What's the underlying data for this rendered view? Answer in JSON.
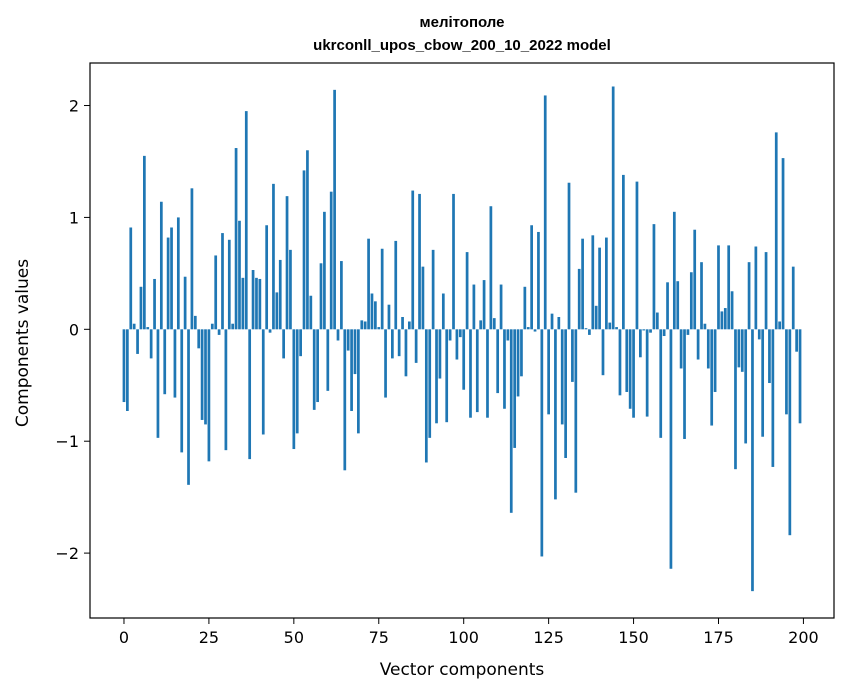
{
  "chart_data": {
    "type": "bar",
    "title": "мелітополе",
    "subtitle": "ukrconll_upos_cbow_200_10_2022 model",
    "xlabel": "Vector components",
    "ylabel": "Components values",
    "xlim": [
      -10,
      209
    ],
    "ylim": [
      -2.58,
      2.38
    ],
    "xticks": [
      0,
      25,
      50,
      75,
      100,
      125,
      150,
      175,
      200
    ],
    "xtick_labels": [
      "0",
      "25",
      "50",
      "75",
      "100",
      "125",
      "150",
      "175",
      "200"
    ],
    "yticks": [
      -2,
      -1,
      0,
      1,
      2
    ],
    "ytick_labels": [
      "−2",
      "−1",
      "0",
      "1",
      "2"
    ],
    "bar_color": "#1f77b4",
    "grid": false,
    "values": [
      -0.65,
      -0.73,
      0.91,
      0.05,
      -0.22,
      0.38,
      1.55,
      0.02,
      -0.26,
      0.45,
      -0.97,
      1.14,
      -0.58,
      0.82,
      0.91,
      -0.61,
      1.0,
      -1.1,
      0.47,
      -1.39,
      1.26,
      0.12,
      -0.17,
      -0.81,
      -0.85,
      -1.18,
      0.05,
      0.66,
      -0.05,
      0.86,
      -1.08,
      0.8,
      0.05,
      1.62,
      0.97,
      0.46,
      1.95,
      -1.16,
      0.53,
      0.46,
      0.45,
      -0.94,
      0.93,
      -0.03,
      1.3,
      0.33,
      0.62,
      -0.26,
      1.19,
      0.71,
      -1.07,
      -0.93,
      -0.24,
      1.42,
      1.6,
      0.3,
      -0.72,
      -0.65,
      0.59,
      1.05,
      -0.55,
      1.23,
      2.14,
      -0.1,
      0.61,
      -1.26,
      -0.19,
      -0.73,
      -0.4,
      -0.93,
      0.08,
      0.07,
      0.81,
      0.32,
      0.25,
      0.02,
      0.72,
      -0.61,
      0.22,
      -0.26,
      0.79,
      -0.24,
      0.11,
      -0.42,
      0.07,
      1.24,
      -0.3,
      1.21,
      0.56,
      -1.19,
      -0.97,
      0.71,
      -0.84,
      -0.44,
      0.32,
      -0.83,
      -0.1,
      1.21,
      -0.27,
      -0.07,
      -0.54,
      0.69,
      -0.79,
      0.4,
      -0.74,
      0.08,
      0.44,
      -0.79,
      1.1,
      0.1,
      -0.57,
      0.4,
      -0.71,
      -0.1,
      -1.64,
      -1.06,
      -0.6,
      -0.42,
      0.38,
      0.02,
      0.93,
      -0.02,
      0.87,
      -2.03,
      2.09,
      -0.76,
      0.14,
      -1.52,
      0.11,
      -0.85,
      -1.15,
      1.31,
      -0.47,
      -1.46,
      0.54,
      0.81,
      0.01,
      -0.05,
      0.84,
      0.21,
      0.73,
      -0.41,
      0.82,
      0.06,
      2.17,
      0.02,
      -0.59,
      1.38,
      -0.56,
      -0.71,
      -0.79,
      1.32,
      -0.25,
      -0.01,
      -0.78,
      -0.03,
      0.94,
      0.15,
      -0.97,
      -0.06,
      0.42,
      -2.14,
      1.05,
      0.43,
      -0.35,
      -0.98,
      -0.05,
      0.51,
      0.89,
      -0.27,
      0.6,
      0.05,
      -0.35,
      -0.86,
      -0.56,
      0.75,
      0.16,
      0.19,
      0.75,
      0.34,
      -1.25,
      -0.34,
      -0.38,
      -1.02,
      0.6,
      -2.34,
      0.74,
      -0.09,
      -0.96,
      0.69,
      -0.48,
      -1.23,
      1.76,
      0.07,
      1.53,
      -0.76,
      -1.84,
      0.56,
      -0.2,
      -0.84
    ]
  }
}
